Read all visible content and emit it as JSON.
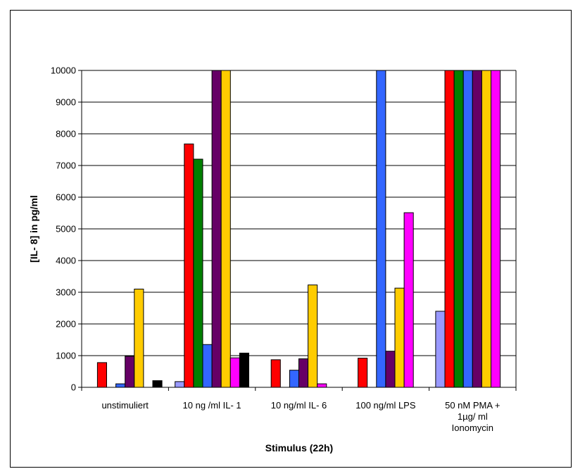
{
  "chart_data": {
    "type": "bar",
    "xlabel": "Stimulus (22h)",
    "ylabel": "[IL- 8] in pg/ml",
    "ylim": [
      0,
      10000
    ],
    "yticks": [
      "0",
      "1000",
      "2000",
      "3000",
      "4000",
      "5000",
      "6000",
      "7000",
      "8000",
      "9000",
      "10000"
    ],
    "grid": true,
    "categories": [
      [
        "unstimuliert"
      ],
      [
        "10 ng /ml IL- 1"
      ],
      [
        "10 ng/ml IL- 6"
      ],
      [
        "100 ng/ml LPS"
      ],
      [
        "50 nM PMA +",
        "1µg/ ml",
        "Ionomycin"
      ]
    ],
    "series": [
      {
        "color": "#9999ff",
        "values": [
          0,
          180,
          0,
          0,
          2400
        ]
      },
      {
        "color": "#ff0000",
        "values": [
          780,
          7680,
          870,
          920,
          10000
        ]
      },
      {
        "color": "#008000",
        "values": [
          0,
          7200,
          0,
          0,
          10000
        ]
      },
      {
        "color": "#3366ff",
        "values": [
          110,
          1350,
          540,
          10000,
          10000
        ]
      },
      {
        "color": "#660066",
        "values": [
          980,
          10000,
          900,
          1140,
          10000
        ]
      },
      {
        "color": "#ffcc00",
        "values": [
          3100,
          10000,
          3230,
          3130,
          10000
        ]
      },
      {
        "color": "#ff00ff",
        "values": [
          0,
          930,
          110,
          5510,
          10000
        ]
      },
      {
        "color": "#000000",
        "values": [
          210,
          1080,
          0,
          0,
          0
        ]
      }
    ]
  }
}
